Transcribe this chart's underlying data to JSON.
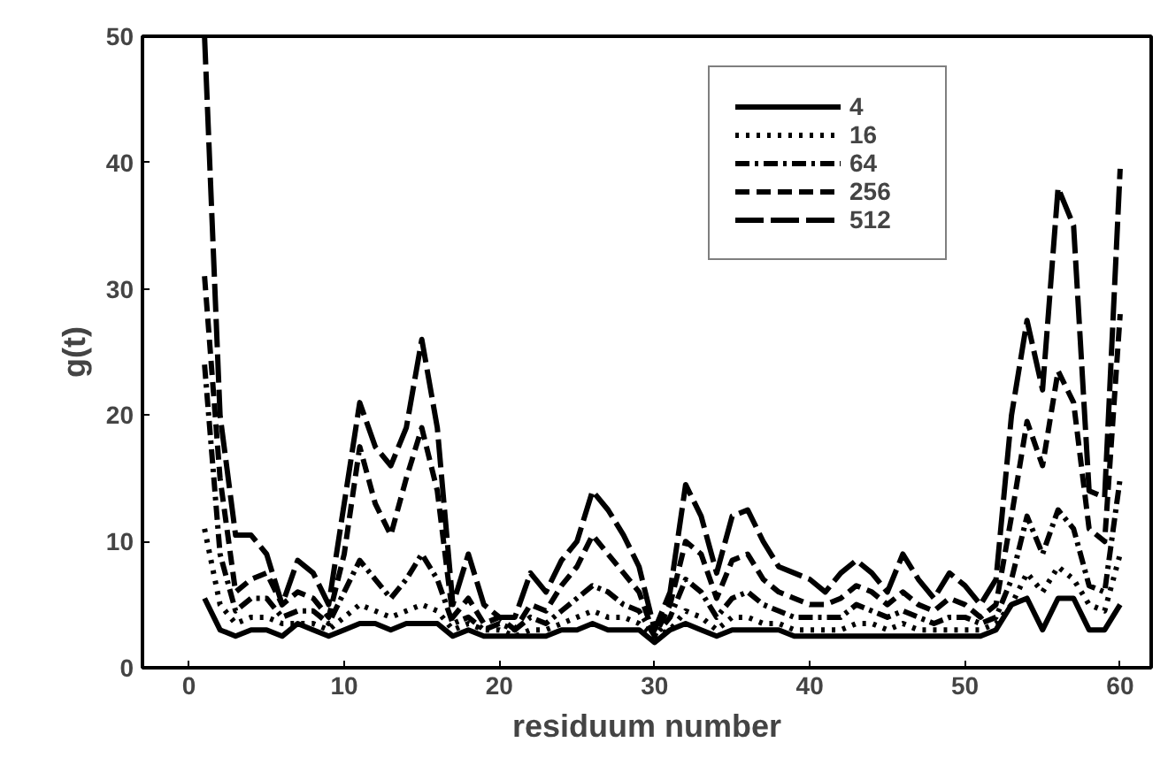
{
  "chart_data": {
    "type": "line",
    "xlabel": "residuum number",
    "ylabel": "g(t)",
    "x": [
      1,
      2,
      3,
      4,
      5,
      6,
      7,
      8,
      9,
      10,
      11,
      12,
      13,
      14,
      15,
      16,
      17,
      18,
      19,
      20,
      21,
      22,
      23,
      24,
      25,
      26,
      27,
      28,
      29,
      30,
      31,
      32,
      33,
      34,
      35,
      36,
      37,
      38,
      39,
      40,
      41,
      42,
      43,
      44,
      45,
      46,
      47,
      48,
      49,
      50,
      51,
      52,
      53,
      54,
      55,
      56,
      57,
      58,
      59,
      60
    ],
    "xlim": [
      -3,
      62
    ],
    "xticks": [
      0,
      10,
      20,
      30,
      40,
      50,
      60
    ],
    "ylim": [
      0,
      50
    ],
    "yticks": [
      0,
      10,
      20,
      30,
      40,
      50
    ],
    "grid": false,
    "legend": "top right",
    "marker": "none",
    "series": [
      {
        "name": "4",
        "color": "#000000",
        "line_style": "solid",
        "values": [
          5.5,
          3,
          2.5,
          3,
          3,
          2.5,
          3.5,
          3,
          2.5,
          3,
          3.5,
          3.5,
          3,
          3.5,
          3.5,
          3.5,
          2.5,
          3,
          2.5,
          2.5,
          2.5,
          2.5,
          2.5,
          3,
          3,
          3.5,
          3,
          3,
          3,
          2,
          3,
          3.5,
          3,
          2.5,
          3,
          3,
          3,
          3,
          2.5,
          2.5,
          2.5,
          2.5,
          2.5,
          2.5,
          2.5,
          2.5,
          2.5,
          2.5,
          2.5,
          2.5,
          2.5,
          3,
          5,
          5.5,
          3,
          5.5,
          5.5,
          3,
          3,
          5
        ]
      },
      {
        "name": "16",
        "color": "#000000",
        "line_style": "dotted",
        "values": [
          11,
          5,
          3.5,
          4,
          4,
          3.5,
          3.5,
          3.5,
          3,
          4,
          5,
          4.5,
          4,
          4.5,
          5,
          4.5,
          3,
          3.5,
          3,
          3,
          2.5,
          3,
          3,
          3.5,
          4,
          4.5,
          4,
          4,
          3.5,
          2.5,
          3,
          4.5,
          4,
          3,
          4,
          4,
          3.5,
          3.5,
          3,
          3,
          3,
          3,
          3.5,
          3.5,
          3,
          3.5,
          3,
          3,
          3,
          3,
          3,
          3.5,
          5,
          7.5,
          6,
          8,
          7,
          5,
          4.5,
          9
        ]
      },
      {
        "name": "64",
        "color": "#000000",
        "line_style": "dashdot",
        "values": [
          24,
          9,
          4.5,
          5.5,
          5.5,
          4,
          4.5,
          4.5,
          3.5,
          6,
          8.5,
          7,
          5.5,
          7,
          9,
          7,
          3.5,
          4,
          3,
          3.5,
          3,
          4,
          3.5,
          4.5,
          5.5,
          6.5,
          6,
          5,
          4.5,
          2.5,
          4,
          7,
          6,
          4,
          5.5,
          6,
          5,
          4.5,
          4,
          4,
          4,
          4,
          5,
          4.5,
          4,
          4.5,
          4,
          3.5,
          4,
          4,
          3.5,
          4,
          7,
          12,
          9,
          12.5,
          11,
          6.5,
          6,
          15
        ]
      },
      {
        "name": "256",
        "color": "#000000",
        "line_style": "dashed",
        "values": [
          31,
          15,
          6,
          7,
          7.5,
          5,
          6,
          5.5,
          4,
          9,
          17.5,
          13,
          10.5,
          15,
          19,
          14,
          4,
          5.5,
          3.5,
          4,
          3,
          5,
          4.5,
          6.5,
          8,
          10.5,
          9,
          7.5,
          6,
          2.5,
          5,
          10,
          9,
          5.5,
          8.5,
          9,
          7,
          6,
          5.5,
          5,
          5,
          5.5,
          6.5,
          6,
          5,
          6,
          5,
          4.5,
          5.5,
          5,
          4,
          5,
          12,
          19.5,
          16,
          23.5,
          21,
          11,
          10,
          28
        ]
      },
      {
        "name": "512",
        "color": "#000000",
        "line_style": "longdash",
        "values": [
          50,
          20,
          10.5,
          10.5,
          9,
          5,
          8.5,
          7.5,
          5,
          13,
          21,
          17.5,
          16,
          19,
          26,
          19,
          5,
          9,
          5,
          4,
          4,
          7.5,
          6,
          8.5,
          10,
          14,
          12.5,
          10.5,
          8,
          3,
          6,
          14.5,
          12,
          7.5,
          12,
          12.5,
          10,
          8,
          7.5,
          7,
          6,
          7.5,
          8.5,
          7.5,
          6,
          9,
          7,
          5.5,
          7.5,
          6.5,
          5,
          7,
          20,
          27.5,
          22,
          38,
          35,
          14,
          13.5,
          39.5
        ]
      }
    ]
  }
}
